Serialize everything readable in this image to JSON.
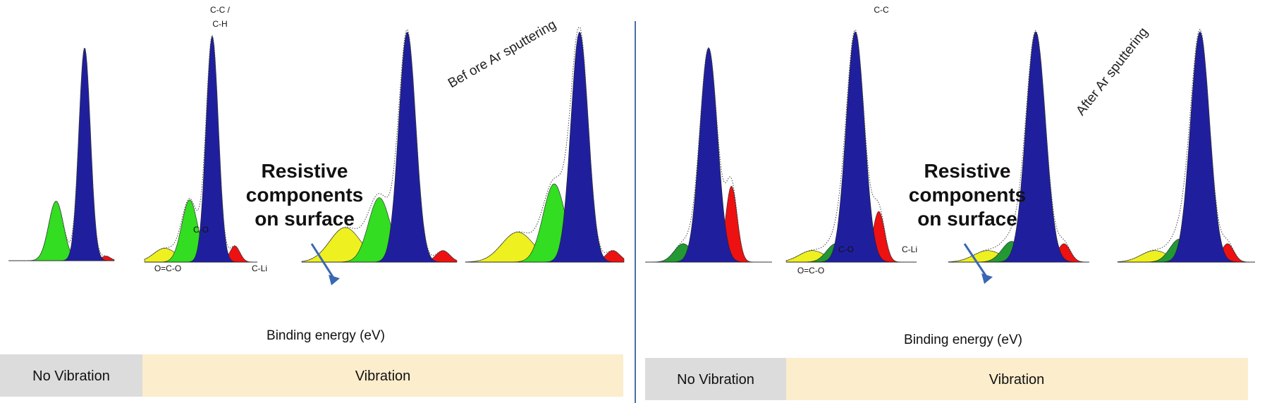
{
  "colors": {
    "cc": "#1f1f9e",
    "co": "#33dd22",
    "coDark": "#229933",
    "oco": "#eef020",
    "cli": "#ee1111",
    "bar_grey": "#dcdcdc",
    "bar_beige": "#fcedcc",
    "divider": "#4a6fa5",
    "arrow": "#3a67b2"
  },
  "left_group": {
    "note": "Bef ore Ar sputtering",
    "callout": [
      "Resistive",
      "components",
      "on surface"
    ],
    "xlabel": "Binding energy (eV)",
    "no_vibration_label": "No Vibration",
    "vibration_label": "Vibration"
  },
  "right_group": {
    "note": "After Ar sputtering",
    "callout": [
      "Resistive",
      "components",
      "on surface"
    ],
    "xlabel": "Binding energy (eV)",
    "no_vibration_label": "No Vibration",
    "vibration_label": "Vibration"
  },
  "peak_labels": {
    "cc_ch_top": "C-C /",
    "cc_ch_bottom": "C-H",
    "cc": "C-C",
    "co": "C-O",
    "oco": "O=C-O",
    "cli": "C-Li"
  },
  "chart_data": [
    {
      "type": "area",
      "panel": 1,
      "condition": "No Vibration",
      "stage": "Before Ar sputtering",
      "series": [
        {
          "name": "C-C / C-H",
          "center": 0.72,
          "height": 0.93
        },
        {
          "name": "C-O",
          "center": 0.45,
          "height": 0.26
        },
        {
          "name": "C-Li",
          "center": 0.92,
          "height": 0.02
        }
      ]
    },
    {
      "type": "area",
      "panel": 2,
      "condition": "Vibration",
      "stage": "Before Ar sputtering",
      "series": [
        {
          "name": "C-C / C-H",
          "center": 0.6,
          "height": 0.98
        },
        {
          "name": "C-O",
          "center": 0.4,
          "height": 0.27
        },
        {
          "name": "O=C-O",
          "center": 0.18,
          "height": 0.06
        },
        {
          "name": "C-Li",
          "center": 0.8,
          "height": 0.07
        }
      ]
    },
    {
      "type": "area",
      "panel": 3,
      "condition": "Vibration",
      "stage": "Before Ar sputtering",
      "series": [
        {
          "name": "C-C / C-H",
          "center": 0.68,
          "height": 1.0
        },
        {
          "name": "C-O",
          "center": 0.5,
          "height": 0.28
        },
        {
          "name": "O=C-O",
          "center": 0.28,
          "height": 0.15
        },
        {
          "name": "C-Li",
          "center": 0.91,
          "height": 0.05
        }
      ]
    },
    {
      "type": "area",
      "panel": 4,
      "condition": "Vibration",
      "stage": "Before Ar sputtering",
      "series": [
        {
          "name": "C-C / C-H",
          "center": 0.72,
          "height": 1.0
        },
        {
          "name": "C-O",
          "center": 0.56,
          "height": 0.34
        },
        {
          "name": "O=C-O",
          "center": 0.33,
          "height": 0.13
        },
        {
          "name": "C-Li",
          "center": 0.93,
          "height": 0.05
        }
      ]
    },
    {
      "type": "area",
      "panel": 5,
      "condition": "No Vibration",
      "stage": "After Ar sputtering",
      "series": [
        {
          "name": "C-C",
          "center": 0.5,
          "height": 0.93
        },
        {
          "name": "C-Li",
          "center": 0.68,
          "height": 0.33
        },
        {
          "name": "C-O",
          "center": 0.3,
          "height": 0.08
        }
      ]
    },
    {
      "type": "area",
      "panel": 6,
      "condition": "Vibration",
      "stage": "After Ar sputtering",
      "series": [
        {
          "name": "C-C",
          "center": 0.53,
          "height": 1.0
        },
        {
          "name": "C-Li",
          "center": 0.71,
          "height": 0.22
        },
        {
          "name": "C-O",
          "center": 0.38,
          "height": 0.08
        },
        {
          "name": "O=C-O",
          "center": 0.2,
          "height": 0.05
        }
      ]
    },
    {
      "type": "area",
      "panel": 7,
      "condition": "Vibration",
      "stage": "After Ar sputtering",
      "series": [
        {
          "name": "C-C",
          "center": 0.62,
          "height": 1.0
        },
        {
          "name": "C-Li",
          "center": 0.82,
          "height": 0.08
        },
        {
          "name": "C-O",
          "center": 0.45,
          "height": 0.09
        },
        {
          "name": "O=C-O",
          "center": 0.28,
          "height": 0.05
        }
      ]
    },
    {
      "type": "area",
      "panel": 8,
      "condition": "Vibration",
      "stage": "After Ar sputtering",
      "series": [
        {
          "name": "C-C",
          "center": 0.6,
          "height": 1.0
        },
        {
          "name": "C-Li",
          "center": 0.8,
          "height": 0.08
        },
        {
          "name": "C-O",
          "center": 0.45,
          "height": 0.1
        },
        {
          "name": "O=C-O",
          "center": 0.27,
          "height": 0.05
        }
      ]
    }
  ]
}
